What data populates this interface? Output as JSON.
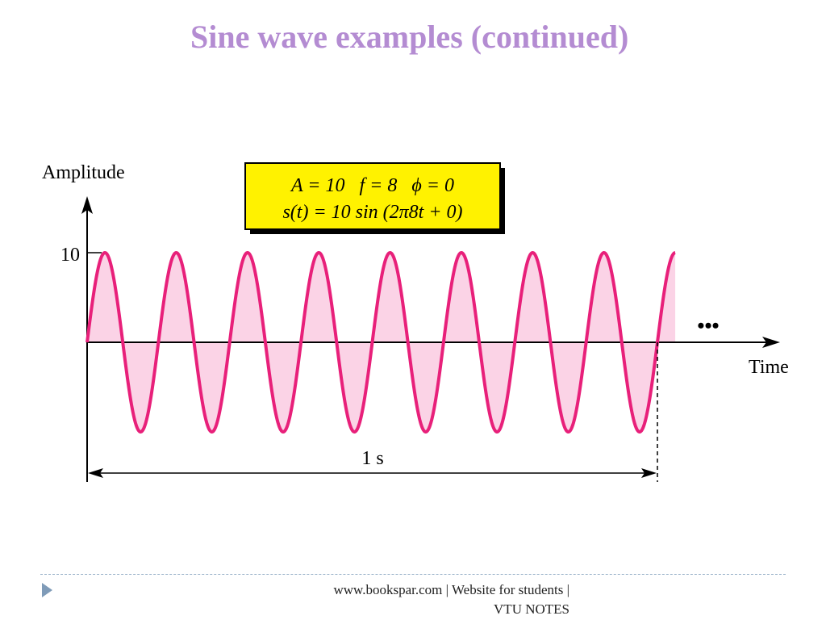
{
  "slide": {
    "title": "Sine wave examples (continued)"
  },
  "chart_data": {
    "type": "line",
    "ylabel": "Amplitude",
    "xlabel": "Time",
    "y_tick_labels": [
      "10"
    ],
    "amplitude": 10,
    "frequency": 8,
    "phase": 0,
    "x_range": [
      0,
      1.0
    ],
    "periods_drawn": 8.25,
    "duration_label": "1 s",
    "continuation_mark": "•••",
    "params_box": {
      "line1": "A = 10   f = 8   ϕ = 0",
      "line2": "s(t) = 10 sin (2π8t + 0)"
    },
    "colors": {
      "wave": "#e8207a",
      "fill": "#fbd3e6",
      "box": "#fff200",
      "axis": "#000000"
    }
  },
  "footer": {
    "line1": "www.bookspar.com | Website for students |",
    "line2": "VTU NOTES"
  }
}
